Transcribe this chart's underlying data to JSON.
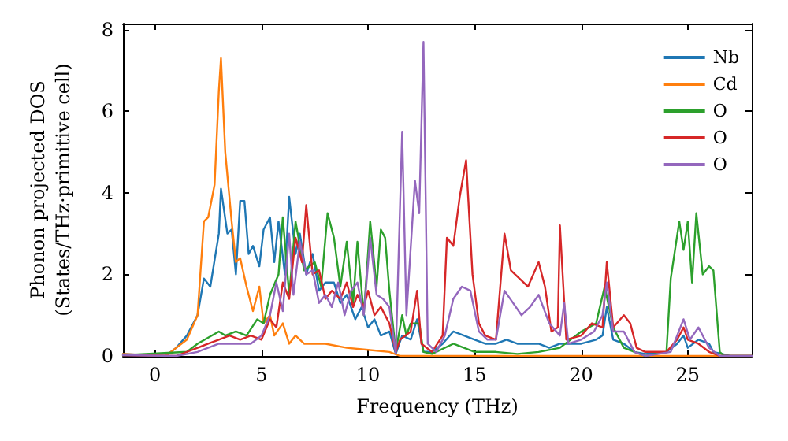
{
  "chart_data": {
    "type": "line",
    "xlabel": "Frequency (THz)",
    "ylabel": "Phonon projected DOS\n(States/THz·primitive cell)",
    "xlim": [
      -1.5,
      28
    ],
    "ylim": [
      0,
      8.15
    ],
    "xticks": [
      0,
      5,
      10,
      15,
      20,
      25
    ],
    "yticks": [
      0,
      2,
      4,
      6,
      8
    ],
    "grid": false,
    "legend": "top right",
    "marker": "none",
    "line_style": "solid",
    "series": [
      {
        "name": "Nb",
        "color": "#1f77b4",
        "x": [
          -1.5,
          0.5,
          1,
          1.5,
          2,
          2.3,
          2.6,
          3,
          3.1,
          3.4,
          3.6,
          3.8,
          4,
          4.2,
          4.4,
          4.6,
          4.9,
          5.1,
          5.4,
          5.6,
          5.8,
          6.1,
          6.3,
          6.6,
          6.8,
          7.1,
          7.4,
          7.7,
          8,
          8.4,
          8.7,
          9,
          9.4,
          9.7,
          10,
          10.3,
          10.6,
          11,
          11.3,
          11.6,
          12,
          12.3,
          12.6,
          13,
          13.5,
          14,
          14.5,
          15,
          15.5,
          16,
          16.5,
          17,
          18,
          18.5,
          19,
          20,
          20.7,
          21,
          21.2,
          21.5,
          22,
          22.5,
          23,
          24,
          24.5,
          24.8,
          25,
          25.5,
          26,
          26.2,
          27,
          28
        ],
        "values": [
          0.05,
          0,
          0.2,
          0.5,
          1,
          1.9,
          1.7,
          3,
          4.1,
          3,
          3.1,
          2,
          3.8,
          3.8,
          2.5,
          2.7,
          2.2,
          3.1,
          3.4,
          2.3,
          3.3,
          2,
          3.9,
          2.5,
          3,
          2,
          2.5,
          1.6,
          1.8,
          1.8,
          1.3,
          1.5,
          0.9,
          1.2,
          0.7,
          0.9,
          0.5,
          0.6,
          0.05,
          0.5,
          0.4,
          0.9,
          0.1,
          0.1,
          0.3,
          0.6,
          0.5,
          0.4,
          0.3,
          0.3,
          0.4,
          0.3,
          0.3,
          0.2,
          0.3,
          0.3,
          0.4,
          0.5,
          1.2,
          0.4,
          0.3,
          0.1,
          0.05,
          0.1,
          0.3,
          0.5,
          0.2,
          0.4,
          0.3,
          0.1,
          0,
          0
        ]
      },
      {
        "name": "Cd",
        "color": "#ff7f0e",
        "x": [
          -1.5,
          0.5,
          1,
          1.5,
          2,
          2.3,
          2.5,
          2.8,
          3,
          3.1,
          3.3,
          3.6,
          3.8,
          4,
          4.3,
          4.6,
          4.9,
          5.1,
          5.4,
          5.6,
          6,
          6.3,
          6.6,
          7,
          8,
          9,
          10,
          11,
          11.5,
          28
        ],
        "values": [
          0.05,
          0,
          0.2,
          0.4,
          1,
          3.3,
          3.4,
          4.2,
          6.5,
          7.3,
          5,
          3.3,
          2.3,
          2.4,
          1.7,
          1.1,
          1.7,
          0.8,
          1,
          0.5,
          0.8,
          0.3,
          0.5,
          0.3,
          0.3,
          0.2,
          0.15,
          0.1,
          0,
          0
        ]
      },
      {
        "name": "O",
        "color": "#2ca02c",
        "x": [
          -1.5,
          1.5,
          2,
          2.5,
          3,
          3.3,
          3.8,
          4.3,
          4.8,
          5.1,
          5.4,
          5.8,
          6,
          6.3,
          6.6,
          7,
          7.5,
          7.8,
          8.1,
          8.4,
          8.7,
          9,
          9.3,
          9.5,
          9.8,
          10.1,
          10.4,
          10.6,
          10.8,
          11,
          11.3,
          11.6,
          11.8,
          12,
          12.4,
          12.6,
          13,
          14,
          14.5,
          15,
          16,
          17,
          18,
          19,
          20,
          20.7,
          21.1,
          21.5,
          22,
          22.5,
          23,
          24,
          24.2,
          24.6,
          24.8,
          25,
          25.2,
          25.4,
          25.7,
          26,
          26.2,
          26.5,
          26.7,
          28
        ],
        "values": [
          0.02,
          0.1,
          0.3,
          0.45,
          0.6,
          0.5,
          0.6,
          0.5,
          0.9,
          0.8,
          1.5,
          2,
          3.4,
          1.5,
          3.3,
          2.1,
          2.3,
          1.7,
          3.5,
          2.9,
          1.7,
          2.8,
          1.3,
          2.8,
          1,
          3.3,
          1.7,
          3.1,
          2.9,
          1.6,
          0.1,
          1,
          0.5,
          0.8,
          0.8,
          0.1,
          0.05,
          0.3,
          0.2,
          0.1,
          0.1,
          0.05,
          0.1,
          0.2,
          0.6,
          0.8,
          1.7,
          0.7,
          0.2,
          0.1,
          0,
          0.1,
          1.9,
          3.3,
          2.6,
          3.3,
          1.8,
          3.5,
          2,
          2.2,
          2.1,
          0.1,
          0,
          0
        ]
      },
      {
        "name": "O",
        "color": "#d62728",
        "x": [
          -1.5,
          1,
          2,
          2.5,
          3,
          3.5,
          4,
          4.5,
          5,
          5.4,
          5.7,
          6,
          6.3,
          6.6,
          6.9,
          7.1,
          7.4,
          7.7,
          8,
          8.3,
          8.7,
          9,
          9.3,
          9.5,
          9.8,
          10,
          10.3,
          10.6,
          11,
          11.3,
          11.5,
          12,
          12.3,
          12.5,
          13,
          13.5,
          13.7,
          14,
          14.3,
          14.6,
          14.9,
          15.2,
          15.5,
          16,
          16.4,
          16.7,
          17.5,
          18,
          18.3,
          18.6,
          18.9,
          19,
          19.3,
          20,
          20.5,
          21,
          21.2,
          21.5,
          22,
          22.3,
          22.6,
          23,
          24,
          24.5,
          24.8,
          25,
          25.5,
          26,
          26.5,
          28
        ],
        "values": [
          0.02,
          0,
          0.2,
          0.3,
          0.4,
          0.5,
          0.4,
          0.5,
          0.4,
          0.9,
          0.7,
          1.8,
          1.4,
          2.9,
          2.3,
          3.7,
          2,
          2.1,
          1.4,
          1.6,
          1.4,
          1.8,
          1.2,
          1.5,
          1.2,
          1.6,
          1,
          1.2,
          0.8,
          0.1,
          0.4,
          0.6,
          1.6,
          0.3,
          0.1,
          0.5,
          2.9,
          2.7,
          3.9,
          4.8,
          2,
          0.8,
          0.5,
          0.4,
          3,
          2.1,
          1.7,
          2.3,
          1.7,
          0.6,
          0.7,
          3.2,
          0.4,
          0.5,
          0.8,
          0.7,
          2.3,
          0.7,
          1,
          0.8,
          0.2,
          0.1,
          0.1,
          0.4,
          0.7,
          0.4,
          0.3,
          0.1,
          0,
          0
        ]
      },
      {
        "name": "O",
        "color": "#9467bd",
        "x": [
          -1.5,
          1,
          2,
          3,
          4,
          4.5,
          5,
          5.4,
          5.7,
          6,
          6.3,
          6.5,
          6.8,
          7.1,
          7.4,
          7.7,
          8,
          8.3,
          8.6,
          8.9,
          9.2,
          9.5,
          9.8,
          10.1,
          10.4,
          10.7,
          11,
          11.3,
          11.6,
          11.8,
          12.2,
          12.4,
          12.6,
          12.8,
          13.2,
          13.6,
          14,
          14.4,
          14.8,
          15.2,
          15.6,
          16,
          16.4,
          16.8,
          17.2,
          17.6,
          18,
          18.5,
          19,
          19.2,
          19.4,
          20,
          20.6,
          21,
          21.2,
          21.5,
          22,
          22.5,
          23,
          24.2,
          24.5,
          24.8,
          25.1,
          25.5,
          26,
          26.5,
          28
        ],
        "values": [
          0.02,
          0,
          0.1,
          0.3,
          0.3,
          0.3,
          0.5,
          1,
          1.8,
          1.1,
          3,
          1.5,
          2.8,
          2,
          2.1,
          1.3,
          1.5,
          1.2,
          1.8,
          1,
          1.6,
          1.8,
          1,
          2.9,
          1.5,
          1.4,
          1.2,
          0.05,
          5.5,
          1,
          4.3,
          3.5,
          7.7,
          0.3,
          0.1,
          0.5,
          1.4,
          1.7,
          1.6,
          0.6,
          0.4,
          0.4,
          1.6,
          1.3,
          1,
          1.2,
          1.5,
          0.8,
          0.5,
          1.3,
          0.3,
          0.4,
          0.6,
          1,
          1.8,
          0.6,
          0.6,
          0.1,
          0,
          0.1,
          0.5,
          0.9,
          0.4,
          0.7,
          0.2,
          0,
          0
        ]
      }
    ]
  }
}
